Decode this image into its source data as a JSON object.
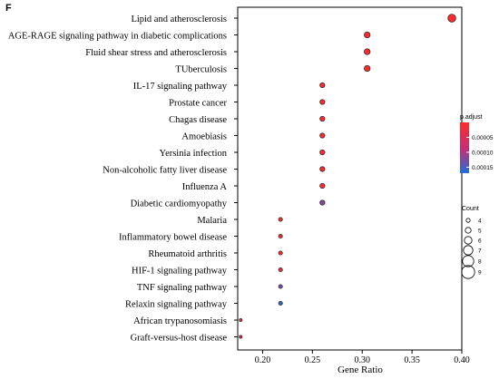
{
  "panel_label": "F",
  "chart_data": {
    "type": "scatter",
    "title": "",
    "xlabel": "Gene Ratio",
    "ylabel": "",
    "xlim": [
      0.175,
      0.4
    ],
    "xticks": [
      0.2,
      0.25,
      0.3,
      0.35,
      0.4
    ],
    "xtick_labels": [
      "0.20",
      "0.25",
      "0.30",
      "0.35",
      "0.40"
    ],
    "grid": false,
    "legend_position": "right",
    "points": [
      {
        "term": "Lipid and atherosclerosis",
        "gene_ratio": 0.39,
        "p_adjust": 1e-06,
        "count": 9
      },
      {
        "term": "AGE-RAGE signaling pathway in diabetic complications",
        "gene_ratio": 0.305,
        "p_adjust": 2.5e-06,
        "count": 7
      },
      {
        "term": "Fluid shear stress and atherosclerosis",
        "gene_ratio": 0.305,
        "p_adjust": 2.5e-06,
        "count": 7
      },
      {
        "term": "TUberculosis",
        "gene_ratio": 0.305,
        "p_adjust": 2.5e-06,
        "count": 7
      },
      {
        "term": "IL-17 signaling pathway",
        "gene_ratio": 0.26,
        "p_adjust": 3e-06,
        "count": 6
      },
      {
        "term": "Prostate cancer",
        "gene_ratio": 0.26,
        "p_adjust": 3e-06,
        "count": 6
      },
      {
        "term": "Chagas disease",
        "gene_ratio": 0.26,
        "p_adjust": 3e-06,
        "count": 6
      },
      {
        "term": "Amoebiasis",
        "gene_ratio": 0.26,
        "p_adjust": 3e-06,
        "count": 6
      },
      {
        "term": "Yersinia infection",
        "gene_ratio": 0.26,
        "p_adjust": 3e-06,
        "count": 6
      },
      {
        "term": "Non-alcoholic fatty liver disease",
        "gene_ratio": 0.26,
        "p_adjust": 3e-06,
        "count": 6
      },
      {
        "term": "Influenza A",
        "gene_ratio": 0.26,
        "p_adjust": 3e-06,
        "count": 6
      },
      {
        "term": "Diabetic cardiomyopathy",
        "gene_ratio": 0.26,
        "p_adjust": 0.000125,
        "count": 6
      },
      {
        "term": "Malaria",
        "gene_ratio": 0.218,
        "p_adjust": 4e-06,
        "count": 5
      },
      {
        "term": "Inflammatory bowel disease",
        "gene_ratio": 0.218,
        "p_adjust": 4e-06,
        "count": 5
      },
      {
        "term": "Rheumatoid arthritis",
        "gene_ratio": 0.218,
        "p_adjust": 8e-06,
        "count": 5
      },
      {
        "term": "HIF-1 signaling pathway",
        "gene_ratio": 0.218,
        "p_adjust": 3e-05,
        "count": 5
      },
      {
        "term": "TNF signaling pathway",
        "gene_ratio": 0.218,
        "p_adjust": 0.00013,
        "count": 5
      },
      {
        "term": "Relaxin signaling pathway",
        "gene_ratio": 0.218,
        "p_adjust": 0.000155,
        "count": 5
      },
      {
        "term": "African trypanosomiasis",
        "gene_ratio": 0.178,
        "p_adjust": 4e-05,
        "count": 4
      },
      {
        "term": "Graft-versus-host disease",
        "gene_ratio": 0.178,
        "p_adjust": 4e-05,
        "count": 4
      }
    ],
    "color_legend": {
      "title": "p.adjust",
      "colors": {
        "low": "#ff2a2a",
        "mid": "#c0307a",
        "high": "#1f6fd6"
      },
      "range": [
        0.0,
        0.00017
      ],
      "ticks": [
        5e-05,
        0.0001,
        0.00015
      ],
      "tick_labels": [
        "0.00005",
        "0.00010",
        "0.00015"
      ]
    },
    "size_legend": {
      "title": "Count",
      "values": [
        4,
        5,
        6,
        7,
        8,
        9
      ],
      "labels": [
        "4",
        "5",
        "6",
        "7",
        "8",
        "9"
      ]
    }
  }
}
